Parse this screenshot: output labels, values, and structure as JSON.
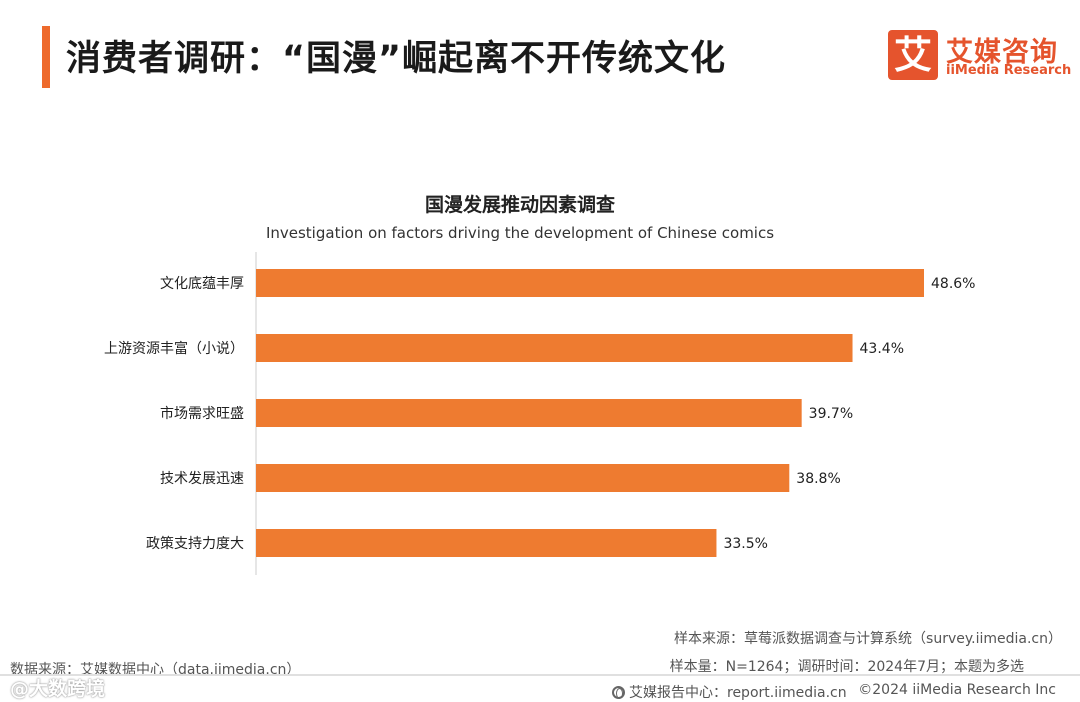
{
  "header": {
    "title": "消费者调研：“国漫”崛起离不开传统文化"
  },
  "logo": {
    "mark": "艾",
    "cn": "艾媒咨询",
    "en": "iiMedia Research"
  },
  "colors": {
    "accent": "#ee6a2c",
    "bar": "#ee7b30",
    "logo": "#e5542d"
  },
  "chart_data": {
    "type": "bar",
    "orientation": "horizontal",
    "title": "国漫发展推动因素调查",
    "subtitle": "Investigation on factors driving the development of Chinese comics",
    "categories": [
      "文化底蕴丰厚",
      "上游资源丰富（小说）",
      "市场需求旺盛",
      "技术发展迅速",
      "政策支持力度大"
    ],
    "values": [
      48.6,
      43.4,
      39.7,
      38.8,
      33.5
    ],
    "labels": [
      "48.6%",
      "43.4%",
      "39.7%",
      "38.8%",
      "33.5%"
    ],
    "unit": "%",
    "xlim": [
      0,
      50
    ]
  },
  "footer": {
    "source_left": "数据来源：艾媒数据中心（data.iimedia.cn）",
    "source_right1": "样本来源：草莓派数据调查与计算系统（survey.iimedia.cn）",
    "source_right2": "样本量：N=1264；调研时间：2024年7月；本题为多选",
    "report": "艾媒报告中心：report.iimedia.cn",
    "copyright": "©2024  iiMedia Research  Inc",
    "watermark": "@大数跨境"
  }
}
